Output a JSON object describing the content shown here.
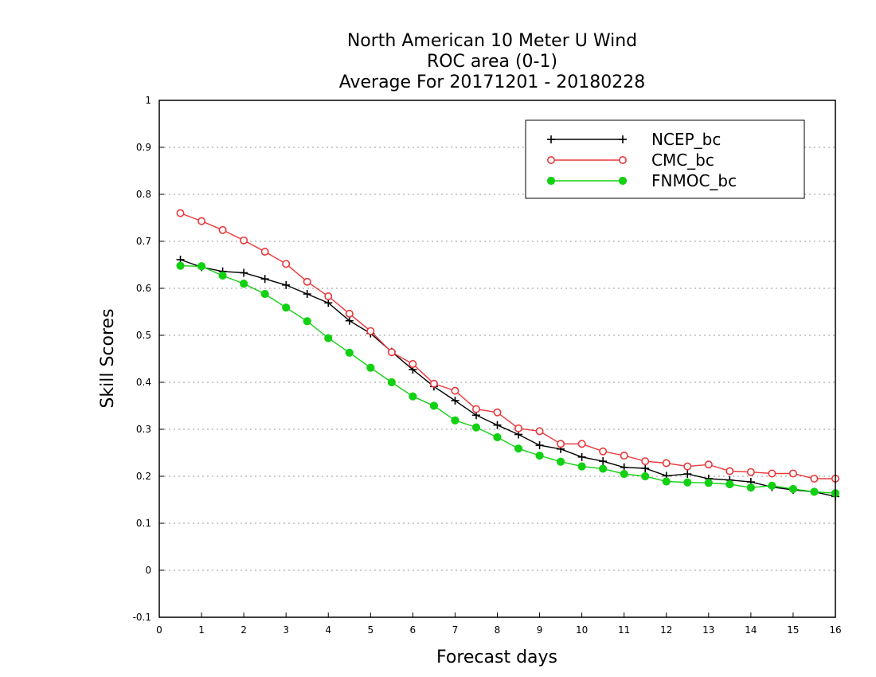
{
  "chart_data": {
    "type": "line",
    "title": [
      "North American 10 Meter U Wind",
      "ROC area (0-1)",
      "Average For 20171201 - 20180228"
    ],
    "xlabel": "Forecast days",
    "ylabel": "Skill Scores",
    "xlim": [
      0,
      16
    ],
    "ylim": [
      -0.1,
      1
    ],
    "xticks": [
      0,
      1,
      2,
      3,
      4,
      5,
      6,
      7,
      8,
      9,
      10,
      11,
      12,
      13,
      14,
      15,
      16
    ],
    "yticks": [
      -0.1,
      0,
      0.1,
      0.2,
      0.3,
      0.4,
      0.5,
      0.6,
      0.7,
      0.8,
      0.9,
      1
    ],
    "ytick_labels": [
      "-0.1",
      "0",
      "0.1",
      "0.2",
      "0.3",
      "0.4",
      "0.5",
      "0.6",
      "0.7",
      "0.8",
      "0.9",
      "1"
    ],
    "grid": "horizontal dotted",
    "legend_position": "top-right",
    "x": [
      0.5,
      1,
      1.5,
      2,
      2.5,
      3,
      3.5,
      4,
      4.5,
      5,
      5.5,
      6,
      6.5,
      7,
      7.5,
      8,
      8.5,
      9,
      9.5,
      10,
      10.5,
      11,
      11.5,
      12,
      12.5,
      13,
      13.5,
      14,
      14.5,
      15,
      15.5,
      16
    ],
    "series": [
      {
        "name": "NCEP_bc",
        "color": "#000000",
        "marker": "plus",
        "values": [
          0.661,
          0.645,
          0.636,
          0.633,
          0.62,
          0.607,
          0.588,
          0.569,
          0.531,
          0.504,
          0.465,
          0.427,
          0.391,
          0.361,
          0.33,
          0.309,
          0.289,
          0.266,
          0.258,
          0.241,
          0.232,
          0.219,
          0.217,
          0.201,
          0.205,
          0.195,
          0.192,
          0.188,
          0.177,
          0.171,
          0.167,
          0.157
        ]
      },
      {
        "name": "CMC_bc",
        "color": "#e8383a",
        "marker": "open-circle",
        "values": [
          0.76,
          0.743,
          0.724,
          0.702,
          0.678,
          0.652,
          0.614,
          0.583,
          0.546,
          0.509,
          0.464,
          0.439,
          0.397,
          0.382,
          0.343,
          0.336,
          0.302,
          0.296,
          0.269,
          0.269,
          0.253,
          0.244,
          0.232,
          0.228,
          0.221,
          0.225,
          0.211,
          0.209,
          0.206,
          0.206,
          0.195,
          0.195
        ]
      },
      {
        "name": "FNMOC_bc",
        "color": "#12d012",
        "marker": "filled-circle",
        "values": [
          0.648,
          0.647,
          0.627,
          0.61,
          0.588,
          0.559,
          0.53,
          0.494,
          0.463,
          0.431,
          0.4,
          0.37,
          0.35,
          0.319,
          0.304,
          0.283,
          0.259,
          0.244,
          0.231,
          0.221,
          0.216,
          0.205,
          0.2,
          0.189,
          0.187,
          0.186,
          0.183,
          0.176,
          0.18,
          0.173,
          0.167,
          0.164
        ]
      }
    ]
  }
}
